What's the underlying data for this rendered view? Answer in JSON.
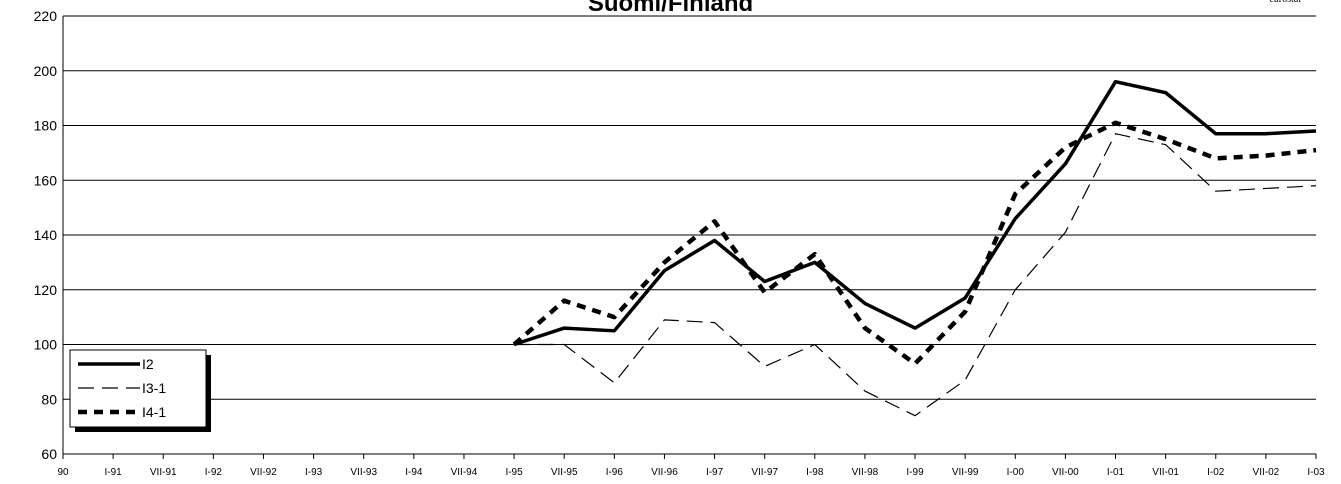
{
  "source_label": "eurostat",
  "colors": {
    "background": "#ffffff",
    "gridline": "#000000",
    "series": "#000000"
  },
  "chart_data": {
    "type": "line",
    "title": "Suomi/Finland",
    "xlabel": "",
    "ylabel": "",
    "ylim": [
      60,
      220
    ],
    "yticks": [
      60,
      80,
      100,
      120,
      140,
      160,
      180,
      200,
      220
    ],
    "grid": true,
    "legend_position": "bottom-left",
    "x": [
      "90",
      "I-91",
      "VII-91",
      "I-92",
      "VII-92",
      "I-93",
      "VII-93",
      "I-94",
      "VII-94",
      "I-95",
      "VII-95",
      "I-96",
      "VII-96",
      "I-97",
      "VII-97",
      "I-98",
      "VII-98",
      "I-99",
      "VII-99",
      "I-00",
      "VII-00",
      "I-01",
      "VII-01",
      "I-02",
      "VII-02",
      "I-03"
    ],
    "series": [
      {
        "name": "I2",
        "style": "solid-thick",
        "values": [
          null,
          null,
          null,
          null,
          null,
          null,
          null,
          null,
          null,
          100,
          106,
          105,
          127,
          138,
          123,
          130,
          115,
          106,
          117,
          146,
          166,
          196,
          192,
          177,
          177,
          178
        ]
      },
      {
        "name": "I3-1",
        "style": "long-dash-thin",
        "values": [
          null,
          null,
          null,
          null,
          null,
          null,
          null,
          null,
          null,
          100,
          100,
          86,
          109,
          108,
          92,
          100,
          83,
          74,
          87,
          120,
          141,
          177,
          173,
          156,
          157,
          158
        ]
      },
      {
        "name": "I4-1",
        "style": "short-dash-thick",
        "values": [
          null,
          null,
          null,
          null,
          null,
          null,
          null,
          null,
          null,
          100,
          116,
          110,
          130,
          145,
          119,
          133,
          106,
          93,
          112,
          155,
          172,
          181,
          175,
          168,
          169,
          171
        ]
      }
    ]
  }
}
